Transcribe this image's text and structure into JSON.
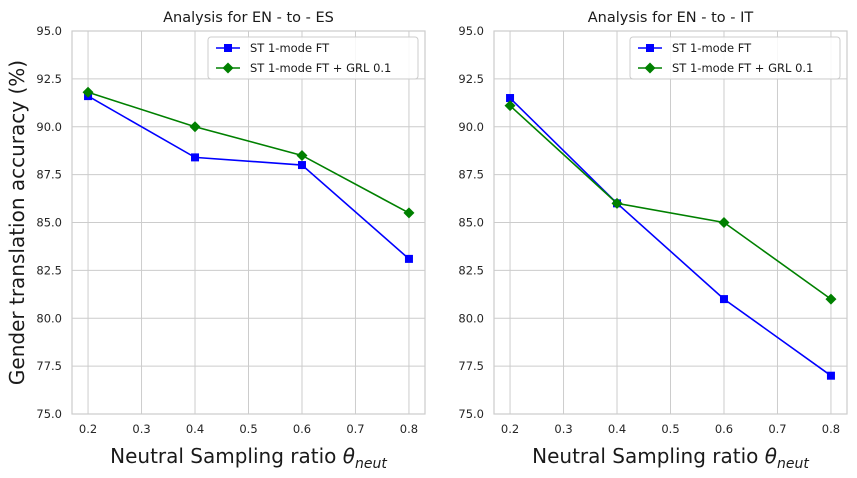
{
  "figure": {
    "ylabel": "Gender translation accuracy (%)"
  },
  "chart_data": [
    {
      "type": "line",
      "title": "Analysis for EN - to - ES",
      "xlabel": "Neutral Sampling ratio",
      "xlabel_symbol": "θ",
      "xlabel_subscript": "neut",
      "ylabel": "Gender translation accuracy (%)",
      "x": [
        0.2,
        0.4,
        0.6,
        0.8
      ],
      "xlim": [
        0.17,
        0.83
      ],
      "ylim": [
        75.0,
        95.0
      ],
      "xticks": [
        "0.2",
        "0.3",
        "0.4",
        "0.5",
        "0.6",
        "0.7",
        "0.8"
      ],
      "yticks": [
        "75.0",
        "77.5",
        "80.0",
        "82.5",
        "85.0",
        "87.5",
        "90.0",
        "92.5",
        "95.0"
      ],
      "grid": true,
      "legend_position": "top-right",
      "series": [
        {
          "name": "ST 1-mode FT",
          "color": "#0000ff",
          "marker": "square",
          "values": [
            91.6,
            88.4,
            88.0,
            83.1
          ]
        },
        {
          "name": "ST 1-mode FT + GRL 0.1",
          "color": "#008000",
          "marker": "diamond",
          "values": [
            91.8,
            90.0,
            88.5,
            85.5
          ]
        }
      ]
    },
    {
      "type": "line",
      "title": "Analysis for EN - to - IT",
      "xlabel": "Neutral Sampling ratio",
      "xlabel_symbol": "θ",
      "xlabel_subscript": "neut",
      "ylabel": "",
      "x": [
        0.2,
        0.4,
        0.6,
        0.8
      ],
      "xlim": [
        0.17,
        0.83
      ],
      "ylim": [
        75.0,
        95.0
      ],
      "xticks": [
        "0.2",
        "0.3",
        "0.4",
        "0.5",
        "0.6",
        "0.7",
        "0.8"
      ],
      "yticks": [
        "75.0",
        "77.5",
        "80.0",
        "82.5",
        "85.0",
        "87.5",
        "90.0",
        "92.5",
        "95.0"
      ],
      "grid": true,
      "legend_position": "top-right",
      "series": [
        {
          "name": "ST 1-mode FT",
          "color": "#0000ff",
          "marker": "square",
          "values": [
            91.5,
            86.0,
            81.0,
            77.0
          ]
        },
        {
          "name": "ST 1-mode FT + GRL 0.1",
          "color": "#008000",
          "marker": "diamond",
          "values": [
            91.1,
            86.0,
            85.0,
            81.0
          ]
        }
      ]
    }
  ]
}
